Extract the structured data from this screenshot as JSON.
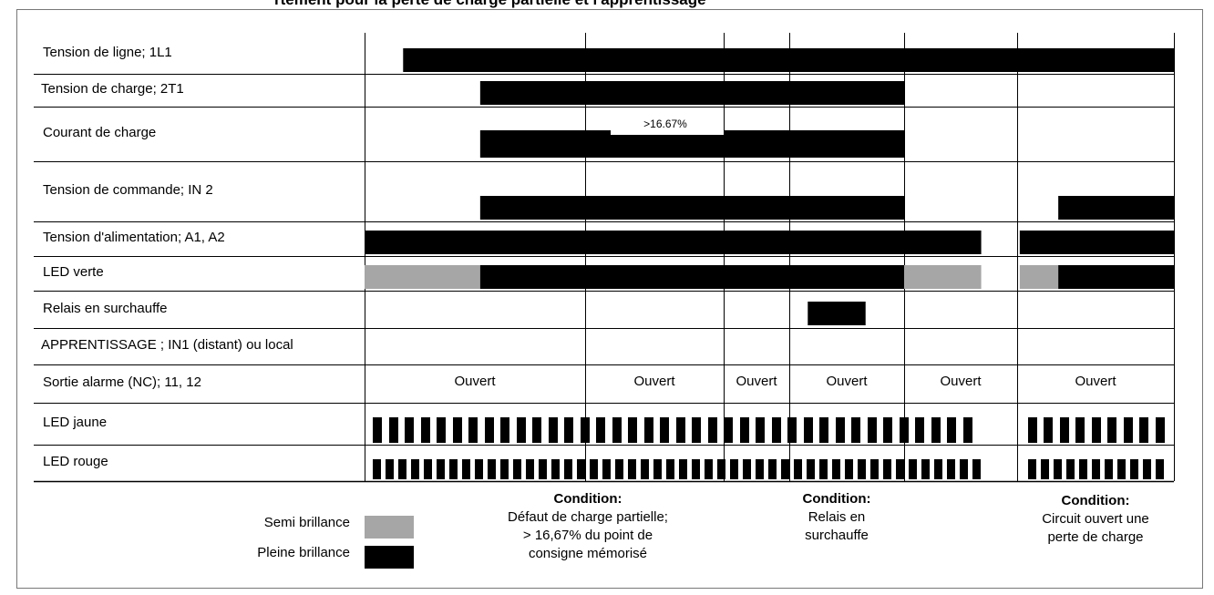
{
  "title_fragment": "rtement pour la perte de charge partielle et l'apprentissage",
  "rows": [
    {
      "label": "Tension de ligne; 1L1",
      "kind": "bar",
      "segments": [
        [
          1,
          21
        ]
      ]
    },
    {
      "label": "Tension de charge; 2T1",
      "kind": "bar",
      "segments": [
        [
          3,
          14
        ]
      ]
    },
    {
      "label": "Courant de charge",
      "kind": "current",
      "segments": [
        [
          3,
          14
        ]
      ],
      "note": ">16.67%"
    },
    {
      "label": "Tension de commande; IN 2",
      "kind": "bar",
      "segments": [
        [
          3,
          14
        ],
        [
          18,
          21
        ]
      ]
    },
    {
      "label": "Tension d'alimentation; A1, A2",
      "kind": "bar",
      "segments": [
        [
          0,
          16
        ],
        [
          17,
          21
        ]
      ]
    },
    {
      "label": "LED verte",
      "kind": "led",
      "half": [
        [
          0,
          3
        ],
        [
          14,
          16
        ],
        [
          17,
          18
        ]
      ],
      "full": [
        [
          3,
          14
        ],
        [
          18,
          21
        ]
      ]
    },
    {
      "label": "Relais en surchauffe",
      "kind": "bar",
      "segments": [
        [
          11.5,
          13
        ]
      ]
    },
    {
      "label": "APPRENTISSAGE ; IN1 (distant) ou local",
      "kind": "empty"
    },
    {
      "label": "Sortie alarme (NC); 11, 12",
      "kind": "alarm",
      "texts": [
        "Ouvert",
        "Ouvert",
        "Ouvert",
        "Ouvert",
        "Ouvert",
        "Ouvert"
      ]
    },
    {
      "label": "LED jaune",
      "kind": "blink",
      "segments": [
        [
          0,
          16
        ],
        [
          17,
          21
        ]
      ]
    },
    {
      "label": "LED rouge",
      "kind": "blink",
      "segments": [
        [
          0,
          16
        ],
        [
          17,
          21
        ]
      ]
    }
  ],
  "legend": [
    {
      "label": "Semi brillance",
      "color": "#a6a6a6"
    },
    {
      "label": "Pleine brillance",
      "color": "#000000"
    }
  ],
  "conditions": [
    {
      "heading": "Condition:",
      "lines": [
        "Défaut de charge partielle;",
        "> 16,67% du point de",
        "consigne mémorisé"
      ]
    },
    {
      "heading": "Condition:",
      "lines": [
        "Relais en",
        "surchauffe"
      ]
    },
    {
      "heading": "Condition:",
      "lines": [
        "Circuit ouvert une",
        "perte de charge"
      ]
    }
  ],
  "colors": {
    "full": "#000000",
    "half": "#a6a6a6",
    "grid": "#000000",
    "frame": "#777777"
  }
}
